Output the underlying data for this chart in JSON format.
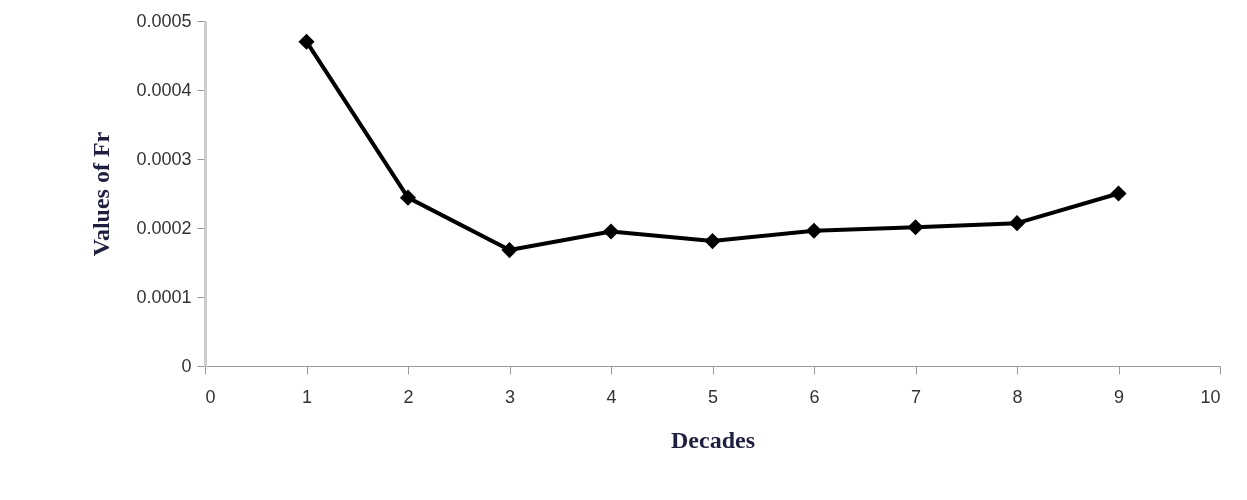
{
  "chart_data": {
    "type": "line",
    "xlabel": "Decades",
    "ylabel": "Values of Fr",
    "x": [
      1,
      2,
      3,
      4,
      5,
      6,
      7,
      8,
      9
    ],
    "series": [
      {
        "color": "#000000",
        "values": [
          0.00047,
          0.000244,
          0.000168,
          0.000195,
          0.000181,
          0.000196,
          0.000201,
          0.000207,
          0.00025
        ]
      }
    ],
    "xlim": [
      0,
      10
    ],
    "xticks": [
      0,
      1,
      2,
      3,
      4,
      5,
      6,
      7,
      8,
      9,
      10
    ],
    "ylim": [
      0,
      0.0005
    ],
    "yticks": [
      0,
      0.0001,
      0.0002,
      0.0003,
      0.0004,
      0.0005
    ],
    "grid": false,
    "marker": "diamond",
    "line_style": "solid"
  }
}
